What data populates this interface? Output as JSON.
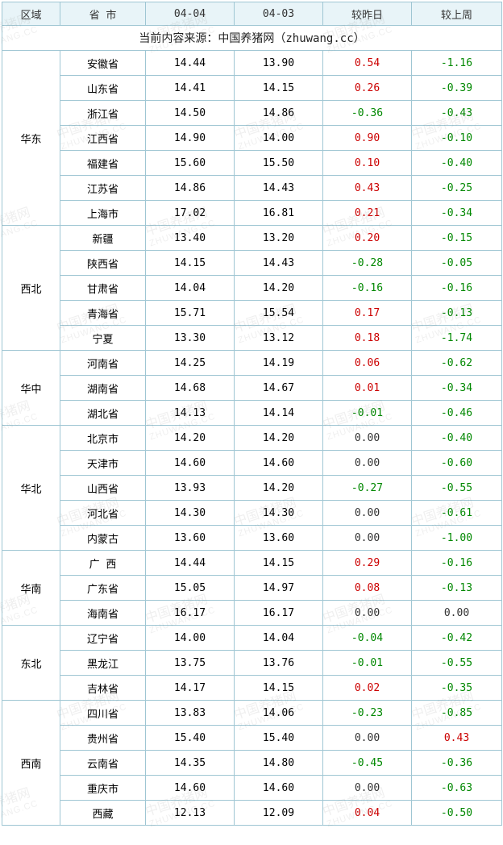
{
  "colors": {
    "border": "#9fc6d3",
    "header_bg": "#e8f4f8",
    "pos": "#cc0000",
    "neg": "#008800",
    "zero": "#333333",
    "watermark": "rgba(120,120,120,0.12)"
  },
  "watermark": {
    "text_cn": "中国养猪网",
    "text_en": "ZHUWANG.CC"
  },
  "header": {
    "region": "区域",
    "province": "省 市",
    "d1": "04-04",
    "d2": "04-03",
    "dday": "较昨日",
    "dweek": "较上周"
  },
  "source_line": "当前内容来源：中国养猪网（zhuwang.cc）",
  "regions": [
    {
      "name": "华东",
      "rows": [
        {
          "prov": "安徽省",
          "d1": "14.44",
          "d2": "13.90",
          "dd": "0.54",
          "dw": "-1.16"
        },
        {
          "prov": "山东省",
          "d1": "14.41",
          "d2": "14.15",
          "dd": "0.26",
          "dw": "-0.39"
        },
        {
          "prov": "浙江省",
          "d1": "14.50",
          "d2": "14.86",
          "dd": "-0.36",
          "dw": "-0.43"
        },
        {
          "prov": "江西省",
          "d1": "14.90",
          "d2": "14.00",
          "dd": "0.90",
          "dw": "-0.10"
        },
        {
          "prov": "福建省",
          "d1": "15.60",
          "d2": "15.50",
          "dd": "0.10",
          "dw": "-0.40"
        },
        {
          "prov": "江苏省",
          "d1": "14.86",
          "d2": "14.43",
          "dd": "0.43",
          "dw": "-0.25"
        },
        {
          "prov": "上海市",
          "d1": "17.02",
          "d2": "16.81",
          "dd": "0.21",
          "dw": "-0.34"
        }
      ]
    },
    {
      "name": "西北",
      "rows": [
        {
          "prov": "新疆",
          "d1": "13.40",
          "d2": "13.20",
          "dd": "0.20",
          "dw": "-0.15"
        },
        {
          "prov": "陕西省",
          "d1": "14.15",
          "d2": "14.43",
          "dd": "-0.28",
          "dw": "-0.05"
        },
        {
          "prov": "甘肃省",
          "d1": "14.04",
          "d2": "14.20",
          "dd": "-0.16",
          "dw": "-0.16"
        },
        {
          "prov": "青海省",
          "d1": "15.71",
          "d2": "15.54",
          "dd": "0.17",
          "dw": "-0.13"
        },
        {
          "prov": "宁夏",
          "d1": "13.30",
          "d2": "13.12",
          "dd": "0.18",
          "dw": "-1.74"
        }
      ]
    },
    {
      "name": "华中",
      "rows": [
        {
          "prov": "河南省",
          "d1": "14.25",
          "d2": "14.19",
          "dd": "0.06",
          "dw": "-0.62"
        },
        {
          "prov": "湖南省",
          "d1": "14.68",
          "d2": "14.67",
          "dd": "0.01",
          "dw": "-0.34"
        },
        {
          "prov": "湖北省",
          "d1": "14.13",
          "d2": "14.14",
          "dd": "-0.01",
          "dw": "-0.46"
        }
      ]
    },
    {
      "name": "华北",
      "rows": [
        {
          "prov": "北京市",
          "d1": "14.20",
          "d2": "14.20",
          "dd": "0.00",
          "dw": "-0.40"
        },
        {
          "prov": "天津市",
          "d1": "14.60",
          "d2": "14.60",
          "dd": "0.00",
          "dw": "-0.60"
        },
        {
          "prov": "山西省",
          "d1": "13.93",
          "d2": "14.20",
          "dd": "-0.27",
          "dw": "-0.55"
        },
        {
          "prov": "河北省",
          "d1": "14.30",
          "d2": "14.30",
          "dd": "0.00",
          "dw": "-0.61"
        },
        {
          "prov": "内蒙古",
          "d1": "13.60",
          "d2": "13.60",
          "dd": "0.00",
          "dw": "-1.00"
        }
      ]
    },
    {
      "name": "华南",
      "rows": [
        {
          "prov": "广 西",
          "d1": "14.44",
          "d2": "14.15",
          "dd": "0.29",
          "dw": "-0.16"
        },
        {
          "prov": "广东省",
          "d1": "15.05",
          "d2": "14.97",
          "dd": "0.08",
          "dw": "-0.13"
        },
        {
          "prov": "海南省",
          "d1": "16.17",
          "d2": "16.17",
          "dd": "0.00",
          "dw": "0.00"
        }
      ]
    },
    {
      "name": "东北",
      "rows": [
        {
          "prov": "辽宁省",
          "d1": "14.00",
          "d2": "14.04",
          "dd": "-0.04",
          "dw": "-0.42"
        },
        {
          "prov": "黑龙江",
          "d1": "13.75",
          "d2": "13.76",
          "dd": "-0.01",
          "dw": "-0.55"
        },
        {
          "prov": "吉林省",
          "d1": "14.17",
          "d2": "14.15",
          "dd": "0.02",
          "dw": "-0.35"
        }
      ]
    },
    {
      "name": "西南",
      "rows": [
        {
          "prov": "四川省",
          "d1": "13.83",
          "d2": "14.06",
          "dd": "-0.23",
          "dw": "-0.85"
        },
        {
          "prov": "贵州省",
          "d1": "15.40",
          "d2": "15.40",
          "dd": "0.00",
          "dw": "0.43"
        },
        {
          "prov": "云南省",
          "d1": "14.35",
          "d2": "14.80",
          "dd": "-0.45",
          "dw": "-0.36"
        },
        {
          "prov": "重庆市",
          "d1": "14.60",
          "d2": "14.60",
          "dd": "0.00",
          "dw": "-0.63"
        },
        {
          "prov": "西藏",
          "d1": "12.13",
          "d2": "12.09",
          "dd": "0.04",
          "dw": "-0.50"
        }
      ]
    }
  ]
}
